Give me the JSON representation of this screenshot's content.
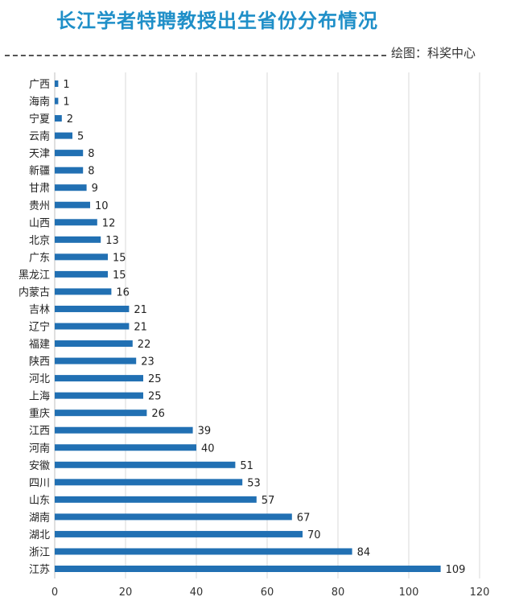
{
  "title": "长江学者特聘教授出生省份分布情况",
  "credit": "绘图：科奖中心",
  "colors": {
    "bar": "#2170b3",
    "title": "#1f8fc8",
    "grid": "#d9d9d9"
  },
  "chart_data": {
    "type": "bar",
    "orientation": "horizontal",
    "title": "长江学者特聘教授出生省份分布情况",
    "xlabel": "",
    "ylabel": "",
    "xlim": [
      0,
      120
    ],
    "xticks": [
      "0",
      "20",
      "40",
      "60",
      "80",
      "100",
      "120"
    ],
    "grid": true,
    "legend": "none",
    "categories": [
      "广西",
      "海南",
      "宁夏",
      "云南",
      "天津",
      "新疆",
      "甘肃",
      "贵州",
      "山西",
      "北京",
      "广东",
      "黑龙江",
      "内蒙古",
      "吉林",
      "辽宁",
      "福建",
      "陕西",
      "河北",
      "上海",
      "重庆",
      "江西",
      "河南",
      "安徽",
      "四川",
      "山东",
      "湖南",
      "湖北",
      "浙江",
      "江苏"
    ],
    "values": [
      1,
      1,
      2,
      5,
      8,
      8,
      9,
      10,
      12,
      13,
      15,
      15,
      16,
      21,
      21,
      22,
      23,
      25,
      25,
      26,
      39,
      40,
      51,
      53,
      57,
      67,
      70,
      84,
      109
    ],
    "data_labels": [
      "1",
      "1",
      "2",
      "5",
      "8",
      "8",
      "9",
      "10",
      "12",
      "13",
      "15",
      "15",
      "16",
      "21",
      "21",
      "22",
      "23",
      "25",
      "25",
      "26",
      "39",
      "40",
      "51",
      "53",
      "57",
      "67",
      "70",
      "84",
      "109"
    ]
  }
}
